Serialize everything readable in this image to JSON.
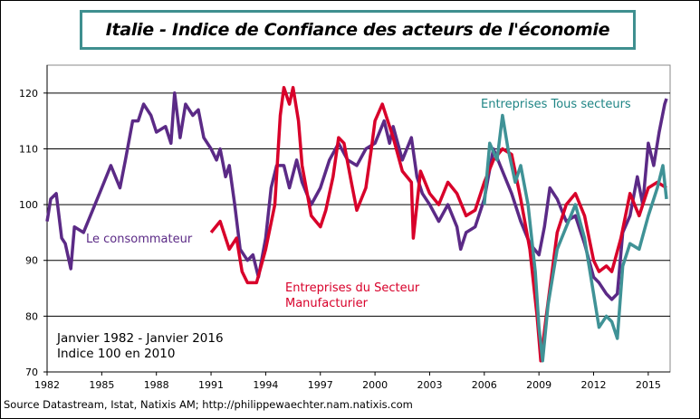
{
  "chart_data": {
    "type": "line",
    "title": "Italie - Indice de Confiance des acteurs de l'économie",
    "xlabel": "",
    "ylabel": "",
    "xlim": [
      1982,
      2016.2
    ],
    "ylim": [
      70,
      125
    ],
    "x_ticks": [
      "1982",
      "1985",
      "1988",
      "1991",
      "1994",
      "1997",
      "2000",
      "2003",
      "2006",
      "2009",
      "2012",
      "2015"
    ],
    "y_ticks": [
      "70",
      "80",
      "90",
      "100",
      "110",
      "120"
    ],
    "grid": "horizontal",
    "annotations": {
      "consumer": "Le consommateur",
      "manuf_line1": "Entreprises du Secteur",
      "manuf_line2": "Manufacturier",
      "all": "Entreprises Tous secteurs",
      "period": "Janvier 1982 - Janvier 2016",
      "base": "Indice 100 en 2010"
    },
    "series": [
      {
        "name": "Le consommateur",
        "color": "#5b2a86",
        "x": [
          1982.0,
          1982.2,
          1982.5,
          1982.8,
          1983.0,
          1983.3,
          1983.5,
          1984.0,
          1984.5,
          1985.0,
          1985.5,
          1986.0,
          1986.3,
          1986.7,
          1987.0,
          1987.3,
          1987.7,
          1988.0,
          1988.5,
          1988.8,
          1989.0,
          1989.3,
          1989.6,
          1990.0,
          1990.3,
          1990.6,
          1991.0,
          1991.3,
          1991.5,
          1991.8,
          1992.0,
          1992.3,
          1992.6,
          1993.0,
          1993.3,
          1993.6,
          1994.0,
          1994.3,
          1994.6,
          1995.0,
          1995.3,
          1995.7,
          1996.0,
          1996.5,
          1997.0,
          1997.5,
          1998.0,
          1998.5,
          1999.0,
          1999.5,
          2000.0,
          2000.5,
          2000.8,
          2001.0,
          2001.5,
          2002.0,
          2002.3,
          2002.6,
          2003.0,
          2003.5,
          2004.0,
          2004.5,
          2004.7,
          2005.0,
          2005.5,
          2006.0,
          2006.5,
          2007.0,
          2007.5,
          2008.0,
          2008.5,
          2009.0,
          2009.3,
          2009.6,
          2010.0,
          2010.5,
          2011.0,
          2011.5,
          2012.0,
          2012.3,
          2012.7,
          2013.0,
          2013.3,
          2013.6,
          2014.0,
          2014.4,
          2014.7,
          2015.0,
          2015.3,
          2015.6,
          2015.9,
          2016.0
        ],
        "values": [
          97,
          101,
          102,
          94,
          93,
          88.5,
          96,
          95,
          99,
          103,
          107,
          103,
          108,
          115,
          115,
          118,
          116,
          113,
          114,
          111,
          120,
          112,
          118,
          116,
          117,
          112,
          110,
          108,
          110,
          105,
          107,
          100,
          92,
          90,
          91,
          87,
          94,
          103,
          107,
          107,
          103,
          108,
          104,
          100,
          103,
          108,
          111,
          108,
          107,
          110,
          111,
          115,
          111,
          114,
          108,
          112,
          105,
          102,
          100,
          97,
          100,
          96,
          92,
          95,
          96,
          101,
          110,
          106,
          102,
          97,
          93,
          91,
          96,
          103,
          101,
          97,
          98,
          93,
          87,
          86,
          84,
          83,
          84,
          95,
          98,
          105,
          100,
          111,
          107,
          113,
          118,
          119
        ]
      },
      {
        "name": "Entreprises du Secteur Manufacturier",
        "color": "#d8002a",
        "x": [
          1991.0,
          1991.5,
          1992.0,
          1992.4,
          1992.7,
          1993.0,
          1993.5,
          1994.0,
          1994.5,
          1994.8,
          1995.0,
          1995.3,
          1995.5,
          1995.8,
          1996.0,
          1996.5,
          1997.0,
          1997.3,
          1997.7,
          1998.0,
          1998.3,
          1998.7,
          1999.0,
          1999.5,
          1999.8,
          2000.0,
          2000.4,
          2000.7,
          2001.0,
          2001.5,
          2002.0,
          2002.1,
          2002.5,
          2003.0,
          2003.5,
          2004.0,
          2004.5,
          2005.0,
          2005.5,
          2006.0,
          2006.5,
          2007.0,
          2007.5,
          2008.0,
          2008.5,
          2008.9,
          2009.1,
          2009.4,
          2009.8,
          2010.0,
          2010.5,
          2011.0,
          2011.5,
          2012.0,
          2012.3,
          2012.7,
          2013.0,
          2013.5,
          2014.0,
          2014.5,
          2015.0,
          2015.5,
          2016.0
        ],
        "values": [
          95,
          97,
          92,
          94,
          88,
          86,
          86,
          92,
          100,
          116,
          121,
          118,
          121,
          115,
          107,
          98,
          96,
          99,
          105,
          112,
          111,
          104,
          99,
          103,
          110,
          115,
          118,
          115,
          112,
          106,
          104,
          94,
          106,
          102,
          100,
          104,
          102,
          98,
          99,
          104,
          108,
          110,
          109,
          101,
          92,
          80,
          72,
          80,
          90,
          95,
          100,
          102,
          98,
          90,
          88,
          89,
          88,
          94,
          102,
          98,
          103,
          104,
          103
        ]
      },
      {
        "name": "Entreprises Tous secteurs",
        "color": "#3f9296",
        "x": [
          2006.0,
          2006.3,
          2006.7,
          2007.0,
          2007.3,
          2007.7,
          2008.0,
          2008.4,
          2008.8,
          2009.0,
          2009.2,
          2009.5,
          2010.0,
          2010.5,
          2011.0,
          2011.5,
          2012.0,
          2012.3,
          2012.7,
          2013.0,
          2013.3,
          2013.6,
          2014.0,
          2014.5,
          2015.0,
          2015.5,
          2015.8,
          2016.0
        ],
        "values": [
          100,
          111,
          108,
          116,
          110,
          104,
          107,
          100,
          88,
          78,
          72,
          82,
          92,
          96,
          100,
          94,
          84,
          78,
          80,
          79,
          76,
          89,
          93,
          92,
          98,
          103,
          107,
          101
        ]
      }
    ]
  },
  "source": "Source Datastream, Istat, Natixis AM; http://philippewaechter.nam.natixis.com"
}
